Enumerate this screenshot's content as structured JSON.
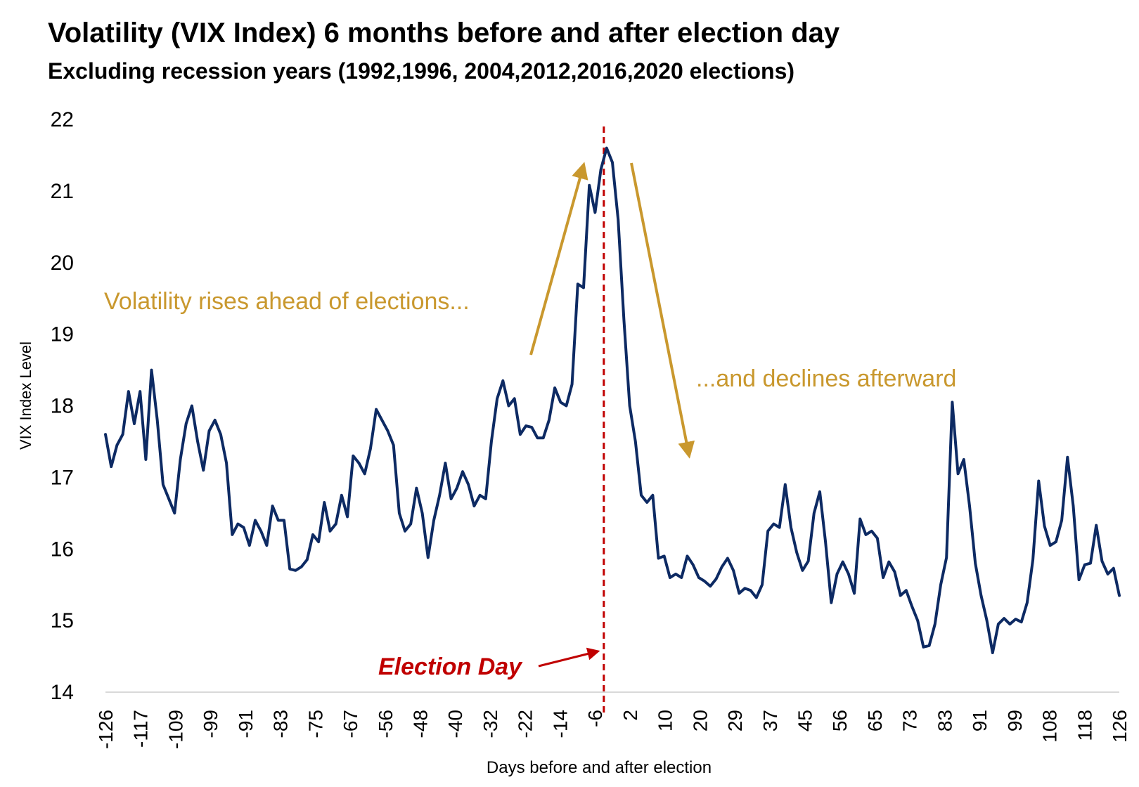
{
  "colors": {
    "line": "#0d2a63",
    "election_line": "#c00000",
    "annotation": "#c9982e",
    "axis": "#d0d0d0"
  },
  "chart_data": {
    "type": "line",
    "title": "Volatility (VIX Index) 6 months before and after election day",
    "subtitle": "Excluding recession years (1992,1996, 2004,2012,2016,2020 elections)",
    "xlabel": "Days before and after election",
    "ylabel": "VIX Index Level",
    "ylim": [
      14,
      22
    ],
    "yticks": [
      "14",
      "15",
      "16",
      "17",
      "18",
      "19",
      "20",
      "21",
      "22"
    ],
    "xtick_labels": [
      "-126",
      "-117",
      "-109",
      "-99",
      "-91",
      "-83",
      "-75",
      "-67",
      "-56",
      "-48",
      "-40",
      "-32",
      "-22",
      "-14",
      "-6",
      "2",
      "10",
      "20",
      "29",
      "37",
      "45",
      "56",
      "65",
      "73",
      "83",
      "91",
      "99",
      "108",
      "118",
      "126"
    ],
    "grid": false,
    "legend": "none",
    "series": [
      {
        "values": [
          17.6,
          17.15,
          17.45,
          17.6,
          18.2,
          17.75,
          18.2,
          17.25,
          18.5,
          17.8,
          16.9,
          16.7,
          16.5,
          17.25,
          17.75,
          18.0,
          17.5,
          17.1,
          17.65,
          17.8,
          17.6,
          17.2,
          16.2,
          16.35,
          16.3,
          16.05,
          16.4,
          16.25,
          16.05,
          16.6,
          16.4,
          16.4,
          15.72,
          15.7,
          15.75,
          15.85,
          16.2,
          16.1,
          16.65,
          16.25,
          16.35,
          16.75,
          16.45,
          17.3,
          17.2,
          17.05,
          17.4,
          17.95,
          17.8,
          17.65,
          17.45,
          16.5,
          16.25,
          16.35,
          16.85,
          16.5,
          15.88,
          16.4,
          16.75,
          17.2,
          16.7,
          16.85,
          17.08,
          16.9,
          16.6,
          16.75,
          16.7,
          17.5,
          18.1,
          18.35,
          18.0,
          18.1,
          17.6,
          17.72,
          17.7,
          17.55,
          17.55,
          17.8,
          18.25,
          18.05,
          18.0,
          18.3,
          19.7,
          19.65,
          21.08,
          20.7,
          21.3,
          21.6,
          21.4,
          20.6,
          19.2,
          18.0,
          17.5,
          16.75,
          16.65,
          16.75,
          15.87,
          15.9,
          15.6,
          15.65,
          15.6,
          15.9,
          15.78,
          15.6,
          15.55,
          15.48,
          15.58,
          15.75,
          15.87,
          15.7,
          15.38,
          15.45,
          15.42,
          15.32,
          15.5,
          16.25,
          16.35,
          16.3,
          16.9,
          16.3,
          15.95,
          15.7,
          15.83,
          16.5,
          16.8,
          16.1,
          15.25,
          15.65,
          15.82,
          15.65,
          15.38,
          16.42,
          16.2,
          16.25,
          16.15,
          15.6,
          15.82,
          15.68,
          15.35,
          15.42,
          15.2,
          15.0,
          14.63,
          14.65,
          14.95,
          15.5,
          15.88,
          18.05,
          17.05,
          17.25,
          16.6,
          15.8,
          15.35,
          15.0,
          14.55,
          14.95,
          15.03,
          14.95,
          15.02,
          14.98,
          15.25,
          15.85,
          16.95,
          16.32,
          16.05,
          16.1,
          16.4,
          17.28,
          16.6,
          15.57,
          15.78,
          15.8,
          16.33,
          15.83,
          15.65,
          15.73,
          15.35
        ]
      }
    ],
    "annotations": {
      "rise": "Volatility rises ahead of elections...",
      "decline": "...and declines afterward",
      "election_day": "Election Day"
    }
  }
}
